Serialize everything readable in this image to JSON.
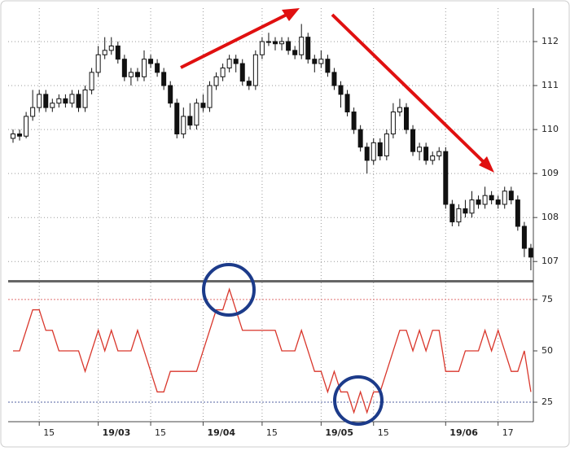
{
  "chart_data": [
    {
      "type": "candlestick",
      "open": [
        109.8,
        109.9,
        109.85,
        110.3,
        110.5,
        110.8,
        110.5,
        110.6,
        110.7,
        110.6,
        110.8,
        110.5,
        110.9,
        111.3,
        111.7,
        111.8,
        111.9,
        111.6,
        111.2,
        111.3,
        111.2,
        111.6,
        111.5,
        111.3,
        111.0,
        110.6,
        109.9,
        110.3,
        110.1,
        110.6,
        110.5,
        111.0,
        111.2,
        111.4,
        111.6,
        111.5,
        111.1,
        111.0,
        111.7,
        112.0,
        112.0,
        111.95,
        112.0,
        111.8,
        111.7,
        112.1,
        111.6,
        111.5,
        111.6,
        111.3,
        111.0,
        110.8,
        110.4,
        110.0,
        109.6,
        109.3,
        109.7,
        109.4,
        109.9,
        110.4,
        110.5,
        110.0,
        109.5,
        109.6,
        109.3,
        109.4,
        109.5,
        108.3,
        107.9,
        108.2,
        108.1,
        108.4,
        108.3,
        108.5,
        108.4,
        108.3,
        108.6,
        108.4,
        107.8,
        107.3
      ],
      "high": [
        110.0,
        110.0,
        110.4,
        110.9,
        110.9,
        110.9,
        110.7,
        110.8,
        110.8,
        110.9,
        110.9,
        111.0,
        111.4,
        111.9,
        112.1,
        112.1,
        112.0,
        111.7,
        111.4,
        111.4,
        111.8,
        111.7,
        111.6,
        111.4,
        111.1,
        110.7,
        110.5,
        110.6,
        110.7,
        110.8,
        111.1,
        111.3,
        111.5,
        111.7,
        111.7,
        111.6,
        111.2,
        111.8,
        112.1,
        112.2,
        112.1,
        112.1,
        112.1,
        111.9,
        112.4,
        112.2,
        111.7,
        111.8,
        111.7,
        111.4,
        111.1,
        110.9,
        110.5,
        110.1,
        109.7,
        109.8,
        109.8,
        110.0,
        110.6,
        110.7,
        110.6,
        110.1,
        109.7,
        109.7,
        109.5,
        109.6,
        109.6,
        108.4,
        108.3,
        108.4,
        108.6,
        108.5,
        108.7,
        108.6,
        108.5,
        108.7,
        108.7,
        108.5,
        107.9,
        107.4
      ],
      "low": [
        109.7,
        109.75,
        109.8,
        110.2,
        110.4,
        110.4,
        110.4,
        110.5,
        110.5,
        110.5,
        110.4,
        110.4,
        110.8,
        111.2,
        111.6,
        111.7,
        111.5,
        111.1,
        111.0,
        111.1,
        111.1,
        111.4,
        111.2,
        110.9,
        110.5,
        109.8,
        109.8,
        110.0,
        110.0,
        110.4,
        110.4,
        110.9,
        111.1,
        111.3,
        111.3,
        111.0,
        110.9,
        110.9,
        111.6,
        111.9,
        111.8,
        111.8,
        111.7,
        111.6,
        111.6,
        111.5,
        111.3,
        111.4,
        111.2,
        110.9,
        110.5,
        110.3,
        109.9,
        109.5,
        109.0,
        109.2,
        109.3,
        109.3,
        109.8,
        110.3,
        109.9,
        109.4,
        109.3,
        109.2,
        109.2,
        109.3,
        108.2,
        107.8,
        107.8,
        108.0,
        108.0,
        108.2,
        108.2,
        108.3,
        108.2,
        108.2,
        108.3,
        107.7,
        107.1,
        106.8
      ],
      "close": [
        109.9,
        109.85,
        110.3,
        110.5,
        110.8,
        110.5,
        110.6,
        110.7,
        110.6,
        110.8,
        110.5,
        110.9,
        111.3,
        111.7,
        111.8,
        111.9,
        111.6,
        111.2,
        111.3,
        111.2,
        111.6,
        111.5,
        111.3,
        111.0,
        110.6,
        109.9,
        110.3,
        110.1,
        110.6,
        110.5,
        111.0,
        111.2,
        111.4,
        111.6,
        111.5,
        111.1,
        111.0,
        111.7,
        112.0,
        112.0,
        111.95,
        112.0,
        111.8,
        111.7,
        112.1,
        111.6,
        111.5,
        111.6,
        111.3,
        111.0,
        110.8,
        110.4,
        110.0,
        109.6,
        109.3,
        109.7,
        109.4,
        109.9,
        110.4,
        110.5,
        110.0,
        109.5,
        109.6,
        109.3,
        109.4,
        109.5,
        108.3,
        107.9,
        108.2,
        108.1,
        108.4,
        108.3,
        108.5,
        108.4,
        108.3,
        108.6,
        108.4,
        107.8,
        107.3,
        107.1
      ],
      "up_color": "#ffffff",
      "down_color": "#111111",
      "ylim": [
        106.56,
        112.76
      ],
      "yticks": [
        107,
        108,
        109,
        110,
        111,
        112
      ],
      "grid": true
    },
    {
      "type": "line",
      "categories": [
        null,
        null,
        null,
        null,
        "15",
        null,
        null,
        null,
        null,
        null,
        null,
        null,
        null,
        "19/03",
        null,
        null,
        null,
        null,
        null,
        null,
        null,
        "15",
        null,
        null,
        null,
        null,
        null,
        null,
        null,
        "19/04",
        null,
        null,
        null,
        null,
        null,
        null,
        null,
        null,
        "15",
        null,
        null,
        null,
        null,
        null,
        null,
        null,
        null,
        "19/05",
        null,
        null,
        null,
        null,
        null,
        null,
        null,
        "15",
        null,
        null,
        null,
        null,
        null,
        null,
        null,
        null,
        null,
        null,
        "19/06",
        null,
        null,
        null,
        null,
        null,
        null,
        null,
        "17",
        null,
        null,
        null,
        null,
        null
      ],
      "series": [
        {
          "color": "#d9362b",
          "values": [
            50,
            50,
            60,
            70,
            70,
            60,
            60,
            50,
            50,
            50,
            50,
            40,
            50,
            60,
            50,
            60,
            50,
            50,
            50,
            60,
            50,
            40,
            30,
            30,
            40,
            40,
            40,
            40,
            40,
            50,
            60,
            70,
            70,
            80,
            70,
            60,
            60,
            60,
            60,
            60,
            60,
            50,
            50,
            50,
            60,
            50,
            40,
            40,
            30,
            40,
            30,
            30,
            20,
            30,
            20,
            30,
            30,
            40,
            50,
            60,
            60,
            50,
            60,
            50,
            60,
            60,
            40,
            40,
            40,
            50,
            50,
            50,
            60,
            50,
            60,
            50,
            40,
            40,
            50,
            30
          ]
        }
      ],
      "hlines": [
        {
          "value": 75,
          "color": "#e07070"
        },
        {
          "value": 25,
          "color": "#5060a0"
        }
      ],
      "ylim": [
        15.5,
        83.3
      ],
      "yticks": [
        25,
        50,
        75
      ],
      "grid": true
    }
  ]
}
